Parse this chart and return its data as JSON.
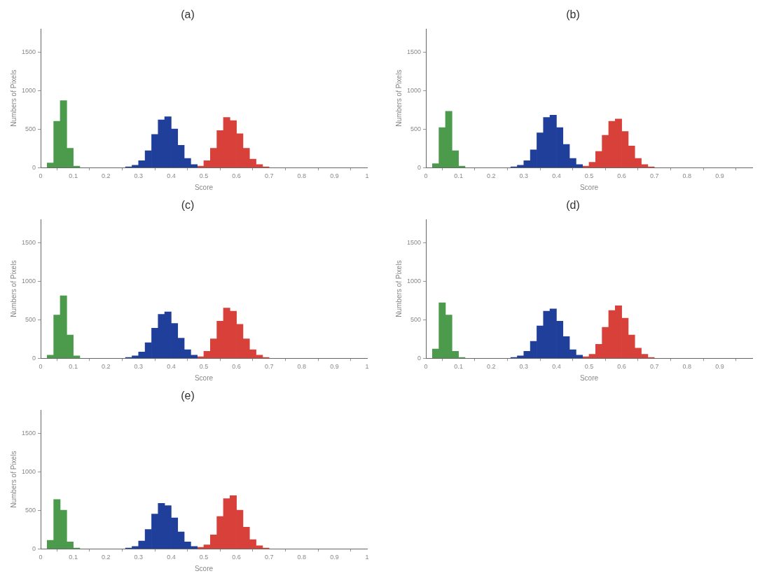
{
  "chart_data": [
    {
      "type": "histogram",
      "title": "(a)",
      "xlabel": "Score",
      "ylabel": "Numbers of Pixels",
      "xlim": [
        0,
        1
      ],
      "xticks": [
        0,
        0.1,
        0.2,
        0.3,
        0.4,
        0.5,
        0.6,
        0.7,
        0.8,
        0.9,
        1
      ],
      "ylim": [
        0,
        1800
      ],
      "yticks": [
        0,
        500,
        1000,
        1500
      ],
      "grid": false,
      "legend": false,
      "bins": [
        0.02,
        0.04,
        0.06,
        0.08,
        0.1,
        0.12,
        0.14,
        0.16,
        0.18,
        0.2,
        0.22,
        0.24,
        0.26,
        0.28,
        0.3,
        0.32,
        0.34,
        0.36,
        0.38,
        0.4,
        0.42,
        0.44,
        0.46,
        0.48,
        0.5,
        0.52,
        0.54,
        0.56,
        0.58,
        0.6,
        0.62,
        0.64,
        0.66,
        0.68,
        0.7
      ],
      "series": [
        {
          "color": "#4c9a4c",
          "values": [
            60,
            600,
            870,
            250,
            20,
            null,
            null,
            null,
            null,
            null,
            null,
            null,
            null,
            null,
            null,
            null,
            null,
            null,
            null,
            null,
            null,
            null,
            null,
            null,
            null,
            null,
            null,
            null,
            null,
            null,
            null,
            null,
            null,
            null
          ]
        },
        {
          "color": "#1f3f9a",
          "values": [
            null,
            null,
            null,
            null,
            null,
            null,
            null,
            null,
            null,
            null,
            null,
            null,
            10,
            30,
            90,
            220,
            430,
            620,
            660,
            500,
            290,
            120,
            40,
            null,
            null,
            null,
            null,
            null,
            null,
            null,
            null,
            null,
            null,
            null
          ]
        },
        {
          "color": "#d8403a",
          "values": [
            null,
            null,
            null,
            null,
            null,
            null,
            null,
            null,
            null,
            null,
            null,
            null,
            null,
            null,
            null,
            null,
            null,
            null,
            null,
            null,
            null,
            null,
            null,
            20,
            90,
            250,
            480,
            650,
            610,
            440,
            250,
            110,
            40,
            10
          ]
        }
      ]
    },
    {
      "type": "histogram",
      "title": "(b)",
      "xlabel": "Score",
      "ylabel": "Numbers of Pixels",
      "xlim": [
        0,
        1
      ],
      "xticks": [
        0,
        0.1,
        0.2,
        0.3,
        0.4,
        0.5,
        0.6,
        0.7,
        0.8,
        0.9
      ],
      "ylim": [
        0,
        1800
      ],
      "yticks": [
        0,
        500,
        1000,
        1500
      ],
      "grid": false,
      "legend": false,
      "bins": [
        0.02,
        0.04,
        0.06,
        0.08,
        0.1,
        0.12,
        0.14,
        0.16,
        0.18,
        0.2,
        0.22,
        0.24,
        0.26,
        0.28,
        0.3,
        0.32,
        0.34,
        0.36,
        0.38,
        0.4,
        0.42,
        0.44,
        0.46,
        0.48,
        0.5,
        0.52,
        0.54,
        0.56,
        0.58,
        0.6,
        0.62,
        0.64,
        0.66,
        0.68,
        0.7
      ],
      "series": [
        {
          "color": "#4c9a4c",
          "values": [
            50,
            520,
            730,
            220,
            20,
            null,
            null,
            null,
            null,
            null,
            null,
            null,
            null,
            null,
            null,
            null,
            null,
            null,
            null,
            null,
            null,
            null,
            null,
            null,
            null,
            null,
            null,
            null,
            null,
            null,
            null,
            null,
            null,
            null
          ]
        },
        {
          "color": "#1f3f9a",
          "values": [
            null,
            null,
            null,
            null,
            null,
            null,
            null,
            null,
            null,
            null,
            null,
            null,
            10,
            30,
            90,
            230,
            450,
            650,
            680,
            520,
            300,
            120,
            40,
            null,
            null,
            null,
            null,
            null,
            null,
            null,
            null,
            null,
            null,
            null
          ]
        },
        {
          "color": "#d8403a",
          "values": [
            null,
            null,
            null,
            null,
            null,
            null,
            null,
            null,
            null,
            null,
            null,
            null,
            null,
            null,
            null,
            null,
            null,
            null,
            null,
            null,
            null,
            null,
            null,
            20,
            70,
            210,
            420,
            600,
            630,
            470,
            280,
            120,
            40,
            10
          ]
        }
      ]
    },
    {
      "type": "histogram",
      "title": "(c)",
      "xlabel": "Score",
      "ylabel": "Numbers of Pixels",
      "xlim": [
        0,
        1
      ],
      "xticks": [
        0,
        0.1,
        0.2,
        0.3,
        0.4,
        0.5,
        0.6,
        0.7,
        0.8,
        0.9,
        1
      ],
      "ylim": [
        0,
        1800
      ],
      "yticks": [
        0,
        500,
        1000,
        1500
      ],
      "grid": false,
      "legend": false,
      "bins": [
        0.02,
        0.04,
        0.06,
        0.08,
        0.1,
        0.12,
        0.14,
        0.16,
        0.18,
        0.2,
        0.22,
        0.24,
        0.26,
        0.28,
        0.3,
        0.32,
        0.34,
        0.36,
        0.38,
        0.4,
        0.42,
        0.44,
        0.46,
        0.48,
        0.5,
        0.52,
        0.54,
        0.56,
        0.58,
        0.6,
        0.62,
        0.64,
        0.66,
        0.68,
        0.7
      ],
      "series": [
        {
          "color": "#4c9a4c",
          "values": [
            40,
            560,
            810,
            300,
            30,
            null,
            null,
            null,
            null,
            null,
            null,
            null,
            null,
            null,
            null,
            null,
            null,
            null,
            null,
            null,
            null,
            null,
            null,
            null,
            null,
            null,
            null,
            null,
            null,
            null,
            null,
            null,
            null,
            null
          ]
        },
        {
          "color": "#1f3f9a",
          "values": [
            null,
            null,
            null,
            null,
            null,
            null,
            null,
            null,
            null,
            null,
            null,
            null,
            10,
            30,
            80,
            200,
            390,
            570,
            600,
            450,
            260,
            110,
            40,
            null,
            null,
            null,
            null,
            null,
            null,
            null,
            null,
            null,
            null,
            null
          ]
        },
        {
          "color": "#d8403a",
          "values": [
            null,
            null,
            null,
            null,
            null,
            null,
            null,
            null,
            null,
            null,
            null,
            null,
            null,
            null,
            null,
            null,
            null,
            null,
            null,
            null,
            null,
            null,
            null,
            20,
            90,
            250,
            480,
            650,
            610,
            440,
            250,
            110,
            40,
            10
          ]
        }
      ]
    },
    {
      "type": "histogram",
      "title": "(d)",
      "xlabel": "Score",
      "ylabel": "Numbers of Pixels",
      "xlim": [
        0,
        1
      ],
      "xticks": [
        0,
        0.1,
        0.2,
        0.3,
        0.4,
        0.5,
        0.6,
        0.7,
        0.8,
        0.9
      ],
      "ylim": [
        0,
        1800
      ],
      "yticks": [
        0,
        500,
        1000,
        1500
      ],
      "grid": false,
      "legend": false,
      "bins": [
        0.02,
        0.04,
        0.06,
        0.08,
        0.1,
        0.12,
        0.14,
        0.16,
        0.18,
        0.2,
        0.22,
        0.24,
        0.26,
        0.28,
        0.3,
        0.32,
        0.34,
        0.36,
        0.38,
        0.4,
        0.42,
        0.44,
        0.46,
        0.48,
        0.5,
        0.52,
        0.54,
        0.56,
        0.58,
        0.6,
        0.62,
        0.64,
        0.66,
        0.68,
        0.7
      ],
      "series": [
        {
          "color": "#4c9a4c",
          "values": [
            120,
            720,
            560,
            90,
            10,
            null,
            null,
            null,
            null,
            null,
            null,
            null,
            null,
            null,
            null,
            null,
            null,
            null,
            null,
            null,
            null,
            null,
            null,
            null,
            null,
            null,
            null,
            null,
            null,
            null,
            null,
            null,
            null,
            null
          ]
        },
        {
          "color": "#1f3f9a",
          "values": [
            null,
            null,
            null,
            null,
            null,
            null,
            null,
            null,
            null,
            null,
            null,
            null,
            10,
            30,
            90,
            220,
            420,
            610,
            640,
            480,
            280,
            110,
            40,
            null,
            null,
            null,
            null,
            null,
            null,
            null,
            null,
            null,
            null,
            null
          ]
        },
        {
          "color": "#d8403a",
          "values": [
            null,
            null,
            null,
            null,
            null,
            null,
            null,
            null,
            null,
            null,
            null,
            null,
            null,
            null,
            null,
            null,
            null,
            null,
            null,
            null,
            null,
            null,
            null,
            20,
            50,
            180,
            400,
            620,
            680,
            520,
            300,
            130,
            50,
            10
          ]
        }
      ]
    },
    {
      "type": "histogram",
      "title": "(e)",
      "xlabel": "Score",
      "ylabel": "Numbers of Pixels",
      "xlim": [
        0,
        1
      ],
      "xticks": [
        0,
        0.1,
        0.2,
        0.3,
        0.4,
        0.5,
        0.6,
        0.7,
        0.8,
        0.9,
        1
      ],
      "ylim": [
        0,
        1800
      ],
      "yticks": [
        0,
        500,
        1000,
        1500
      ],
      "grid": false,
      "legend": false,
      "bins": [
        0.02,
        0.04,
        0.06,
        0.08,
        0.1,
        0.12,
        0.14,
        0.16,
        0.18,
        0.2,
        0.22,
        0.24,
        0.26,
        0.28,
        0.3,
        0.32,
        0.34,
        0.36,
        0.38,
        0.4,
        0.42,
        0.44,
        0.46,
        0.48,
        0.5,
        0.52,
        0.54,
        0.56,
        0.58,
        0.6,
        0.62,
        0.64,
        0.66,
        0.68,
        0.7
      ],
      "series": [
        {
          "color": "#4c9a4c",
          "values": [
            110,
            640,
            500,
            90,
            10,
            null,
            null,
            null,
            null,
            null,
            null,
            null,
            null,
            null,
            null,
            null,
            null,
            null,
            null,
            null,
            null,
            null,
            null,
            null,
            null,
            null,
            null,
            null,
            null,
            null,
            null,
            null,
            null,
            null
          ]
        },
        {
          "color": "#1f3f9a",
          "values": [
            null,
            null,
            null,
            null,
            null,
            null,
            null,
            null,
            null,
            null,
            null,
            null,
            10,
            30,
            100,
            250,
            450,
            590,
            560,
            400,
            220,
            90,
            30,
            null,
            null,
            null,
            null,
            null,
            null,
            null,
            null,
            null,
            null,
            null
          ]
        },
        {
          "color": "#d8403a",
          "values": [
            null,
            null,
            null,
            null,
            null,
            null,
            null,
            null,
            null,
            null,
            null,
            null,
            null,
            null,
            null,
            null,
            null,
            null,
            null,
            null,
            null,
            null,
            null,
            20,
            50,
            180,
            420,
            650,
            690,
            500,
            280,
            120,
            40,
            10
          ]
        }
      ]
    }
  ]
}
